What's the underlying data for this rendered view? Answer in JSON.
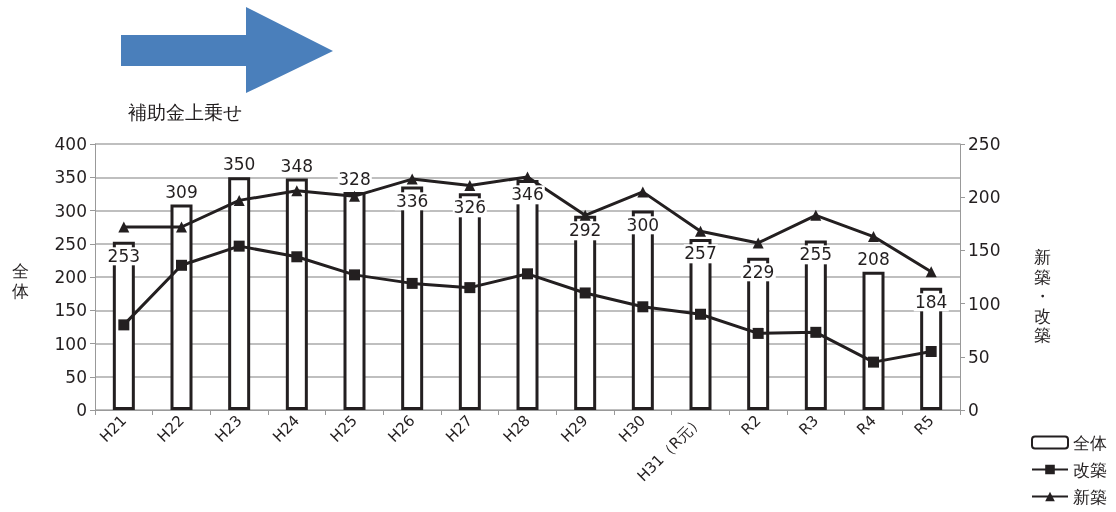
{
  "chart_data": {
    "type": "bar",
    "ylabel": "全体",
    "y2label": "新築・改築",
    "categories": [
      "H21",
      "H22",
      "H23",
      "H24",
      "H25",
      "H26",
      "H27",
      "H28",
      "H29",
      "H30",
      "H31（R元）",
      "R2",
      "R3",
      "R4",
      "R5"
    ],
    "series": [
      {
        "name": "全体",
        "color": "#ffffff",
        "values": [
          253,
          309,
          350,
          348,
          328,
          336,
          326,
          346,
          292,
          300,
          257,
          229,
          255,
          208,
          184
        ],
        "value_labels": [
          "253",
          "309",
          "350",
          "348",
          "328",
          "336",
          "326",
          "346",
          "292",
          "300",
          "257",
          "229",
          "255",
          "208",
          "184"
        ]
      },
      {
        "name": "改築",
        "type": "line",
        "axis": "y2",
        "color": "#231f20",
        "marker": "square",
        "values": [
          80,
          136,
          154,
          144,
          127,
          119,
          115,
          128,
          110,
          97,
          90,
          72,
          73,
          45,
          55
        ]
      },
      {
        "name": "新築",
        "type": "line",
        "axis": "y2",
        "color": "#231f20",
        "marker": "triangle",
        "values": [
          172,
          172,
          197,
          206,
          201,
          217,
          211,
          219,
          183,
          205,
          168,
          157,
          183,
          163,
          130
        ]
      }
    ],
    "ylim": [
      0,
      400
    ],
    "yticks": [
      0,
      50,
      100,
      150,
      200,
      250,
      300,
      350,
      400
    ],
    "y2lim": [
      0,
      250
    ],
    "y2ticks": [
      0,
      50,
      100,
      150,
      200,
      250
    ],
    "grid": "y",
    "legend": "bottom right",
    "annotations": [
      "補助金上乗せ"
    ]
  }
}
